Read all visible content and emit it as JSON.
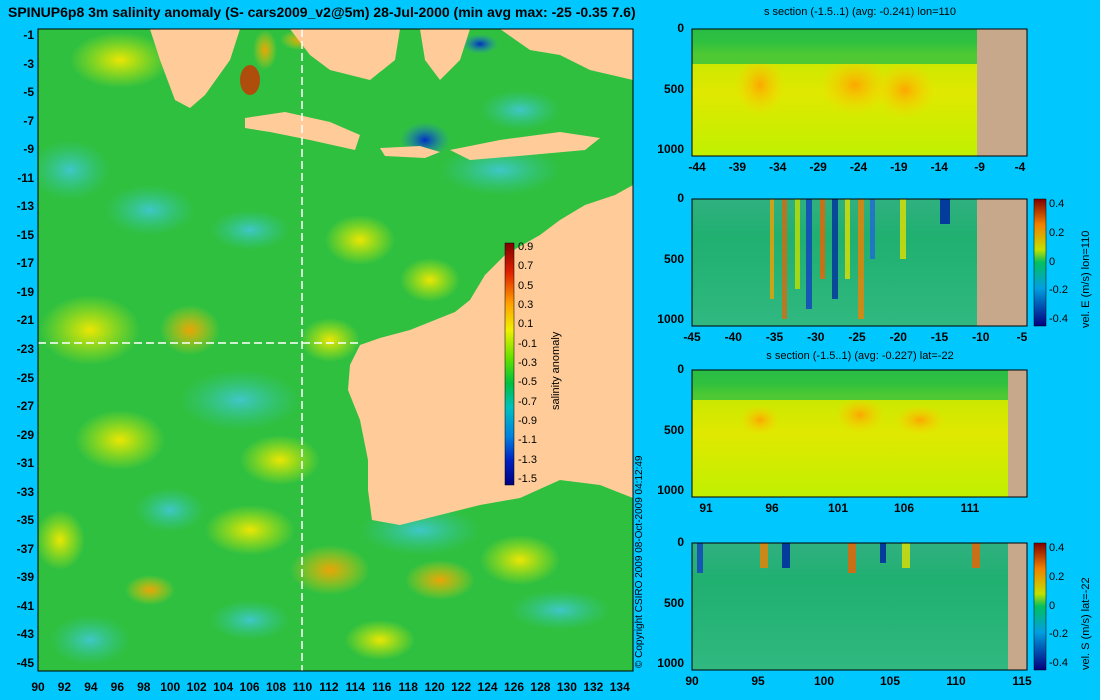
{
  "title": "SPINUP6p8 3m salinity anomaly (S- cars2009_v2@5m) 28-Jul-2000 (min avg max: -25 -0.35 7.6)",
  "copyright": "© Copyright CSIRO 2009  08-Oct-2009 04:12:49",
  "colors": {
    "background": "#00C8FF",
    "land": "#FFCC99",
    "section_land": "#C8A88A",
    "cut_line": "#FFFFFF"
  },
  "chart_data": [
    {
      "type": "heatmap",
      "name": "main-map",
      "x_ticks": [
        "90",
        "92",
        "94",
        "96",
        "98",
        "100",
        "102",
        "104",
        "106",
        "108",
        "110",
        "112",
        "114",
        "116",
        "118",
        "120",
        "122",
        "124",
        "126",
        "128",
        "130",
        "132",
        "134"
      ],
      "y_ticks": [
        "-1",
        "-3",
        "-5",
        "-7",
        "-9",
        "-11",
        "-13",
        "-15",
        "-17",
        "-19",
        "-21",
        "-23",
        "-25",
        "-27",
        "-29",
        "-31",
        "-33",
        "-35",
        "-37",
        "-39",
        "-41",
        "-43",
        "-45"
      ],
      "xlim": [
        90,
        135
      ],
      "ylim": [
        -45,
        0
      ],
      "cut_lon": 110,
      "cut_lat": -22,
      "colorbar": {
        "label": "salinity anomaly",
        "ticks": [
          "0.9",
          "0.7",
          "0.5",
          "0.3",
          "0.1",
          "-0.1",
          "-0.3",
          "-0.5",
          "-0.7",
          "-0.9",
          "-1.1",
          "-1.3",
          "-1.5"
        ],
        "range": [
          -1.5,
          1.0
        ]
      }
    },
    {
      "type": "heatmap",
      "name": "s-section-lon110",
      "title": "s section (-1.5..1) (avg: -0.241) lon=110",
      "x_ticks": [
        "-44",
        "-39",
        "-34",
        "-29",
        "-24",
        "-19",
        "-14",
        "-9",
        "-4"
      ],
      "y_ticks": [
        "0",
        "500",
        "1000"
      ]
    },
    {
      "type": "heatmap",
      "name": "velE-section-lon110",
      "x_ticks": [
        "-45",
        "-40",
        "-35",
        "-30",
        "-25",
        "-20",
        "-15",
        "-10",
        "-5"
      ],
      "y_ticks": [
        "0",
        "500",
        "1000"
      ],
      "colorbar": {
        "label": "vel. E (m/s) lon=110",
        "ticks": [
          "0.4",
          "0.2",
          "0",
          "-0.2",
          "-0.4"
        ],
        "range": [
          -0.4,
          0.4
        ]
      }
    },
    {
      "type": "heatmap",
      "name": "s-section-lat-22",
      "title": "s section (-1.5..1) (avg: -0.227) lat=-22",
      "x_ticks": [
        "91",
        "96",
        "101",
        "106",
        "111"
      ],
      "y_ticks": [
        "0",
        "500",
        "1000"
      ]
    },
    {
      "type": "heatmap",
      "name": "velS-section-lat-22",
      "x_ticks": [
        "90",
        "95",
        "100",
        "105",
        "110",
        "115"
      ],
      "y_ticks": [
        "0",
        "500",
        "1000"
      ],
      "colorbar": {
        "label": "vel. S (m/s) lat=-22",
        "ticks": [
          "0.4",
          "0.2",
          "0",
          "-0.2",
          "-0.4"
        ],
        "range": [
          -0.4,
          0.4
        ]
      }
    }
  ]
}
